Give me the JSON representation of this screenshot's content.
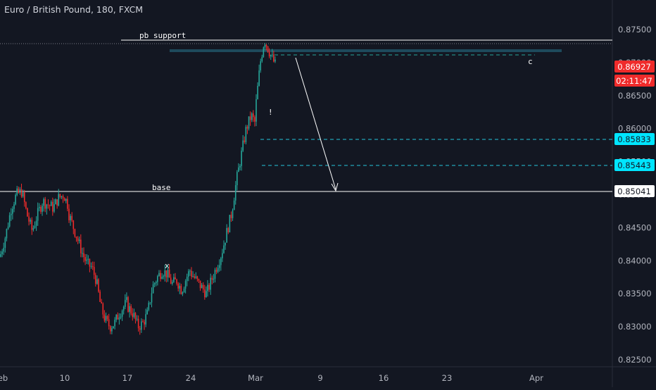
{
  "header": {
    "symbol_title": "Euro / British Pound, 180, FXCM"
  },
  "colors": {
    "background": "#131722",
    "axis_text": "#b2b5be",
    "up_candle": "#26a69a",
    "down_candle": "#ef2b2b",
    "annotation": "#ffffff",
    "price_label_red": "#ef2b2b",
    "price_label_cyan": "#00e5ff",
    "zone": "#1e4a5c"
  },
  "chart_data": {
    "type": "candlestick",
    "symbol": "Euro / British Pound",
    "interval": "180",
    "source": "FXCM",
    "ylim": [
      0.8245,
      0.878
    ],
    "grid": false,
    "y_ticks": [
      "0.87500",
      "0.87000",
      "0.86500",
      "0.86000",
      "0.85500",
      "0.85000",
      "0.84500",
      "0.84000",
      "0.83500",
      "0.83000",
      "0.82500"
    ],
    "x_ticks": [
      "eb",
      "10",
      "17",
      "24",
      "Mar",
      "9",
      "16",
      "23",
      "Apr"
    ],
    "price_labels": {
      "last_price": "0.86927",
      "countdown": "02:11:47",
      "level_1": "0.85833",
      "level_2": "0.85443",
      "base_level": "0.85041"
    },
    "horizontal_levels": [
      {
        "label": "pb support",
        "value": 0.8733
      },
      {
        "label": "base",
        "value": 0.85041
      },
      {
        "label": "",
        "value": 0.85833
      },
      {
        "label": "",
        "value": 0.85443
      },
      {
        "label": "",
        "value": 0.8697
      }
    ],
    "zone": {
      "low": 0.8716,
      "high": 0.872
    },
    "annotations": [
      {
        "text": "pb support"
      },
      {
        "text": "base"
      },
      {
        "text": "c"
      },
      {
        "text": "!"
      },
      {
        "text": "x"
      }
    ],
    "projection_arrow": {
      "from": 0.8695,
      "to": 0.8505
    },
    "price_path": [
      [
        0.841,
        0.844,
        0.848,
        0.85,
        0.8505,
        0.847,
        0.8445,
        0.847,
        0.849,
        0.8485,
        0.848,
        0.8495,
        0.85,
        0.848
      ],
      [
        0.847,
        0.845,
        0.843,
        0.841,
        0.8395,
        0.839,
        0.837,
        0.833,
        0.831,
        0.83,
        0.8305,
        0.832,
        0.833,
        0.834
      ],
      [
        0.833,
        0.832,
        0.83,
        0.8305,
        0.832,
        0.836,
        0.8375,
        0.8385,
        0.838,
        0.8365,
        0.837,
        0.8355,
        0.8375,
        0.839
      ],
      [
        0.838,
        0.837,
        0.836,
        0.835,
        0.837,
        0.839,
        0.841,
        0.844,
        0.847,
        0.852,
        0.856,
        0.86,
        0.862,
        0.8605
      ],
      [
        0.864,
        0.87,
        0.8735,
        0.872,
        0.8705,
        0.8693
      ]
    ]
  }
}
